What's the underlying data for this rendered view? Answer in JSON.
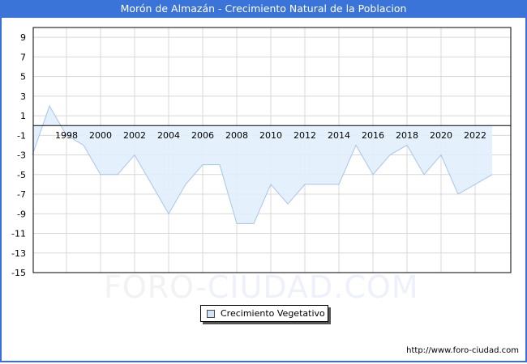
{
  "header": {
    "title": "Morón de Almazán - Crecimiento Natural de la Poblacion"
  },
  "legend": {
    "label": "Crecimiento Vegetativo",
    "swatch_color": "#cfe4f8"
  },
  "watermark": {
    "part1": "FORO-",
    "part2": "CIUDAD.COM"
  },
  "footer": {
    "source": "http://www.foro-ciudad.com"
  },
  "colors": {
    "title_bar": "#3a74d8",
    "area_fill": "#e1effc",
    "line": "#a6c4ec",
    "grid": "#d8d8d8"
  },
  "chart_data": {
    "type": "area",
    "title": "Morón de Almazán - Crecimiento Natural de la Poblacion",
    "xlabel": "",
    "ylabel": "",
    "x": [
      1996,
      1997,
      1998,
      1999,
      2000,
      2001,
      2002,
      2003,
      2004,
      2005,
      2006,
      2007,
      2008,
      2009,
      2010,
      2011,
      2012,
      2013,
      2014,
      2015,
      2016,
      2017,
      2018,
      2019,
      2020,
      2021,
      2022,
      2023
    ],
    "series": [
      {
        "name": "Crecimiento Vegetativo",
        "values": [
          -3,
          2,
          -1,
          -2,
          -5,
          -5,
          -3,
          -6,
          -9,
          -6,
          -4,
          -4,
          -10,
          -10,
          -6,
          -8,
          -6,
          -6,
          -6,
          -2,
          -5,
          -3,
          -2,
          -5,
          -3,
          -7,
          -6,
          -5
        ]
      }
    ],
    "x_tick_labels": [
      "1998",
      "2000",
      "2002",
      "2004",
      "2006",
      "2008",
      "2010",
      "2012",
      "2014",
      "2016",
      "2018",
      "2020",
      "2022"
    ],
    "y_tick_labels": [
      "9",
      "7",
      "5",
      "3",
      "1",
      "-1",
      "-3",
      "-5",
      "-7",
      "-9",
      "-11",
      "-13",
      "-15"
    ],
    "ylim": [
      -15,
      10
    ],
    "xlim": [
      1996,
      2024
    ],
    "grid": true,
    "legend_position": "bottom-center"
  }
}
